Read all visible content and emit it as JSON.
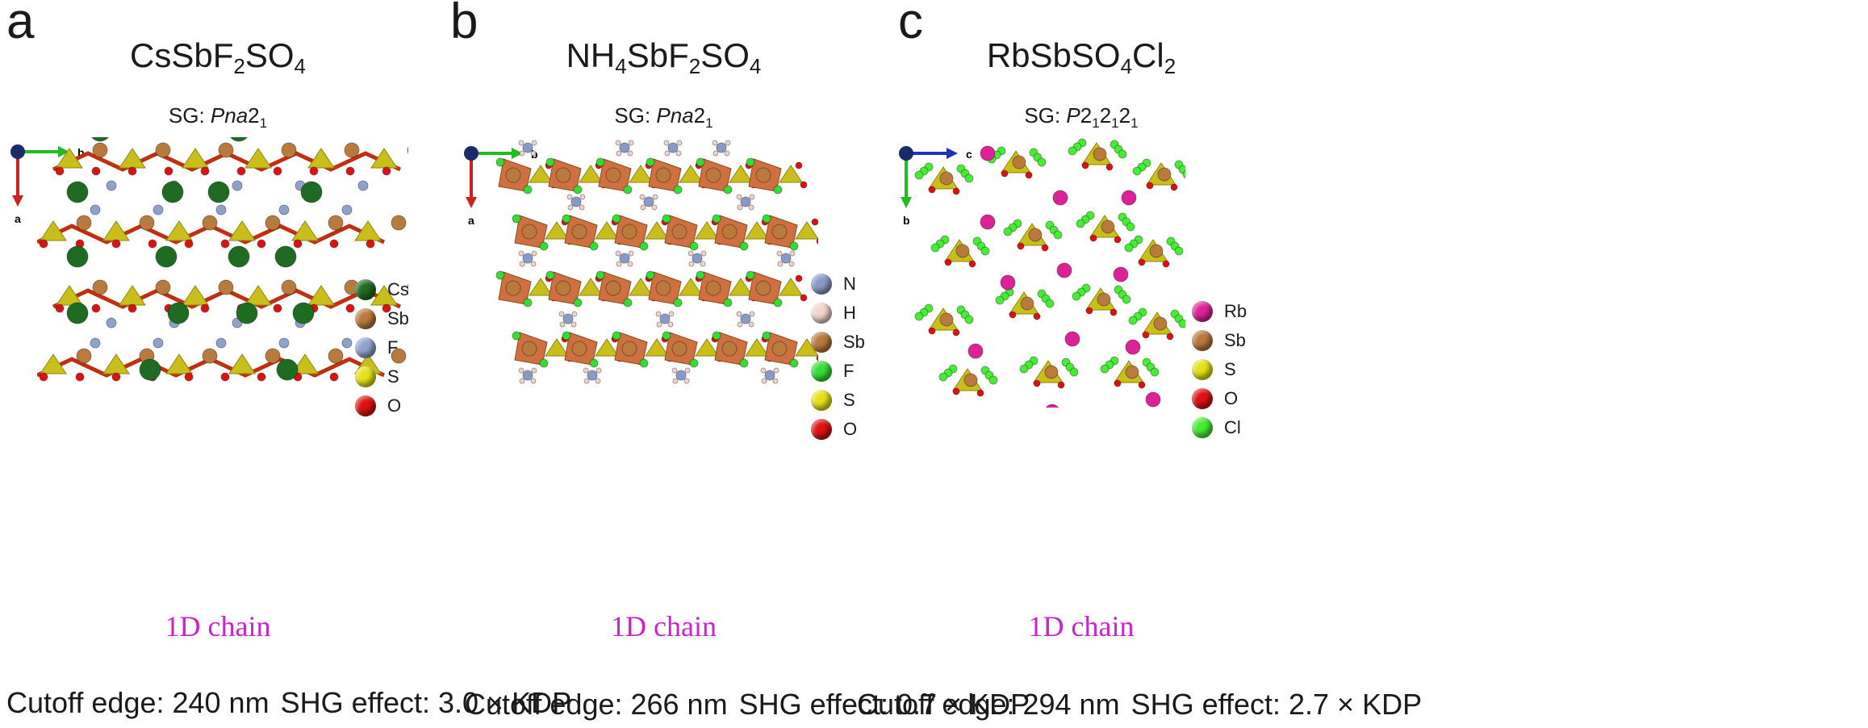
{
  "panels": [
    {
      "letter": "a",
      "formula": [
        [
          "Cs",
          ""
        ],
        [
          "Sb",
          ""
        ],
        [
          "F",
          "2"
        ],
        [
          "SO",
          "4"
        ]
      ],
      "sg": {
        "prefix": "SG: ",
        "parts": [
          [
            "Pna",
            "",
            true
          ],
          [
            "2",
            "1",
            false
          ]
        ]
      },
      "axes": {
        "horizontal": "b",
        "vertical": "a",
        "h_color": "#22bb22",
        "v_color": "#cc2222"
      },
      "chain": "1D chain",
      "cutoff": "Cutoff edge: 240 nm",
      "shg": "SHG effect: 3.0 × KDP",
      "legend": [
        {
          "label": "Cs",
          "color": "#1e6b22"
        },
        {
          "label": "Sb",
          "color": "#b97a3c"
        },
        {
          "label": "F",
          "color": "#8fa2cc"
        },
        {
          "label": "S",
          "color": "#e6e01a"
        },
        {
          "label": "O",
          "color": "#dd1111"
        }
      ]
    },
    {
      "letter": "b",
      "formula": [
        [
          "NH",
          "4"
        ],
        [
          "Sb",
          ""
        ],
        [
          "F",
          "2"
        ],
        [
          "SO",
          "4"
        ]
      ],
      "sg": {
        "prefix": "SG: ",
        "parts": [
          [
            "Pna",
            "",
            true
          ],
          [
            "2",
            "1",
            false
          ]
        ]
      },
      "axes": {
        "horizontal": "b",
        "vertical": "a",
        "h_color": "#22bb22",
        "v_color": "#cc2222"
      },
      "chain": "1D chain",
      "cutoff": "Cutoff edge: 266 nm",
      "shg": "SHG effect: 0.7 × KDP",
      "legend": [
        {
          "label": "N",
          "color": "#8a9ac8"
        },
        {
          "label": "H",
          "color": "#f0d4cc"
        },
        {
          "label": "Sb",
          "color": "#b97a3c"
        },
        {
          "label": "F",
          "color": "#33dd33"
        },
        {
          "label": "S",
          "color": "#e6e01a"
        },
        {
          "label": "O",
          "color": "#dd1111"
        }
      ]
    },
    {
      "letter": "c",
      "formula": [
        [
          "Rb",
          ""
        ],
        [
          "Sb",
          ""
        ],
        [
          "SO",
          "4"
        ],
        [
          "Cl",
          "2"
        ]
      ],
      "sg": {
        "prefix": "SG: ",
        "parts": [
          [
            "P",
            "",
            true
          ],
          [
            "2",
            "1",
            false
          ],
          [
            "2",
            "1",
            false
          ],
          [
            "2",
            "1",
            false
          ]
        ]
      },
      "axes": {
        "horizontal": "c",
        "vertical": "b",
        "h_color": "#2233bb",
        "v_color": "#22bb22"
      },
      "chain": "1D chain",
      "cutoff": "Cutoff edge: 294 nm",
      "shg": "SHG effect: 2.7 × KDP",
      "legend": [
        {
          "label": "Rb",
          "color": "#dd2299"
        },
        {
          "label": "Sb",
          "color": "#b97a3c"
        },
        {
          "label": "S",
          "color": "#e6e01a"
        },
        {
          "label": "O",
          "color": "#dd1111"
        },
        {
          "label": "Cl",
          "color": "#44ee33"
        }
      ]
    }
  ]
}
